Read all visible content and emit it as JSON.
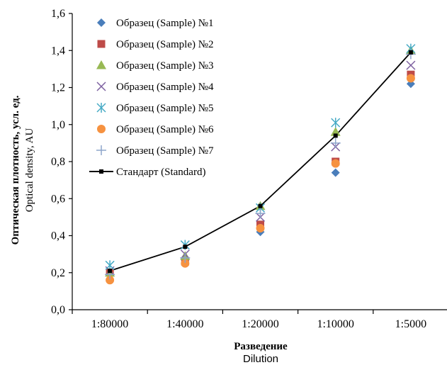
{
  "chart_data": {
    "type": "scatter",
    "xlabel": "Разведение",
    "xlabel_en": "Dilution",
    "ylabel": "Оптическая плотность, усл. ед.",
    "ylabel_en": "Optical density, AU",
    "categories": [
      "1:80000",
      "1:40000",
      "1:20000",
      "1:10000",
      "1:5000"
    ],
    "ylim": [
      0,
      1.6
    ],
    "yticks": [
      "0,0",
      "0,2",
      "0,4",
      "0,6",
      "0,8",
      "1,0",
      "1,2",
      "1,4",
      "1,6"
    ],
    "grid": false,
    "legend_position": "top-left",
    "series": [
      {
        "name": "Образец (Sample) №1",
        "marker": "diamond",
        "color": "#4A7EBB",
        "values": [
          0.19,
          0.27,
          0.42,
          0.74,
          1.22
        ]
      },
      {
        "name": "Образец (Sample) №2",
        "marker": "square",
        "color": "#BE4B48",
        "values": [
          0.2,
          0.26,
          0.46,
          0.8,
          1.27
        ]
      },
      {
        "name": "Образец (Sample) №3",
        "marker": "triangle",
        "color": "#98B954",
        "values": [
          0.2,
          0.29,
          0.56,
          0.96,
          1.4
        ]
      },
      {
        "name": "Образец (Sample) №4",
        "marker": "x",
        "color": "#7D60A0",
        "values": [
          0.21,
          0.3,
          0.5,
          0.88,
          1.32
        ]
      },
      {
        "name": "Образец (Sample) №5",
        "marker": "star",
        "color": "#46AAC5",
        "values": [
          0.24,
          0.35,
          0.55,
          1.01,
          1.41
        ]
      },
      {
        "name": "Образец (Sample) №6",
        "marker": "circle",
        "color": "#F69240",
        "values": [
          0.16,
          0.25,
          0.44,
          0.79,
          1.25
        ]
      },
      {
        "name": "Образец (Sample) №7",
        "marker": "plus",
        "color": "#8EA5CB",
        "values": [
          0.19,
          0.28,
          0.52,
          0.9,
          1.38
        ]
      },
      {
        "name": "Стандарт (Standard)",
        "marker": "line-square",
        "color": "#000000",
        "values": [
          0.21,
          0.34,
          0.56,
          0.94,
          1.39
        ]
      }
    ]
  }
}
